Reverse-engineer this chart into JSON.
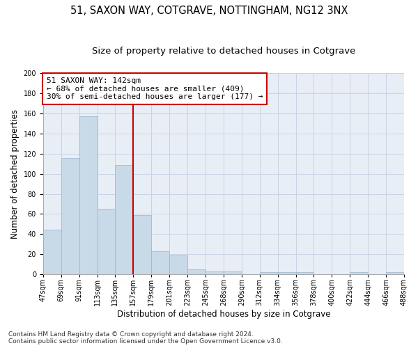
{
  "title_line1": "51, SAXON WAY, COTGRAVE, NOTTINGHAM, NG12 3NX",
  "title_line2": "Size of property relative to detached houses in Cotgrave",
  "xlabel": "Distribution of detached houses by size in Cotgrave",
  "ylabel": "Number of detached properties",
  "bar_values": [
    44,
    116,
    157,
    65,
    109,
    59,
    23,
    19,
    5,
    3,
    3,
    0,
    2,
    2,
    2,
    0,
    0,
    2,
    0,
    2
  ],
  "bar_labels": [
    "47sqm",
    "69sqm",
    "91sqm",
    "113sqm",
    "135sqm",
    "157sqm",
    "179sqm",
    "201sqm",
    "223sqm",
    "245sqm",
    "268sqm",
    "290sqm",
    "312sqm",
    "334sqm",
    "356sqm",
    "378sqm",
    "400sqm",
    "422sqm",
    "444sqm",
    "466sqm"
  ],
  "extra_tick": "488sqm",
  "bar_color": "#c8d9e8",
  "bar_edge_color": "#9ab4cc",
  "grid_color": "#c8d4e4",
  "bg_color": "#e8eef5",
  "fig_bg_color": "#ffffff",
  "red_line_x": 4.5,
  "annotation_text": "51 SAXON WAY: 142sqm\n← 68% of detached houses are smaller (409)\n30% of semi-detached houses are larger (177) →",
  "annotation_box_color": "#ffffff",
  "annotation_box_edge_color": "#cc0000",
  "property_line_color": "#cc0000",
  "ylim": [
    0,
    200
  ],
  "yticks": [
    0,
    20,
    40,
    60,
    80,
    100,
    120,
    140,
    160,
    180,
    200
  ],
  "footer_line1": "Contains HM Land Registry data © Crown copyright and database right 2024.",
  "footer_line2": "Contains public sector information licensed under the Open Government Licence v3.0.",
  "title_fontsize": 10.5,
  "subtitle_fontsize": 9.5,
  "axis_label_fontsize": 8.5,
  "tick_fontsize": 7,
  "annotation_fontsize": 8,
  "footer_fontsize": 6.5
}
